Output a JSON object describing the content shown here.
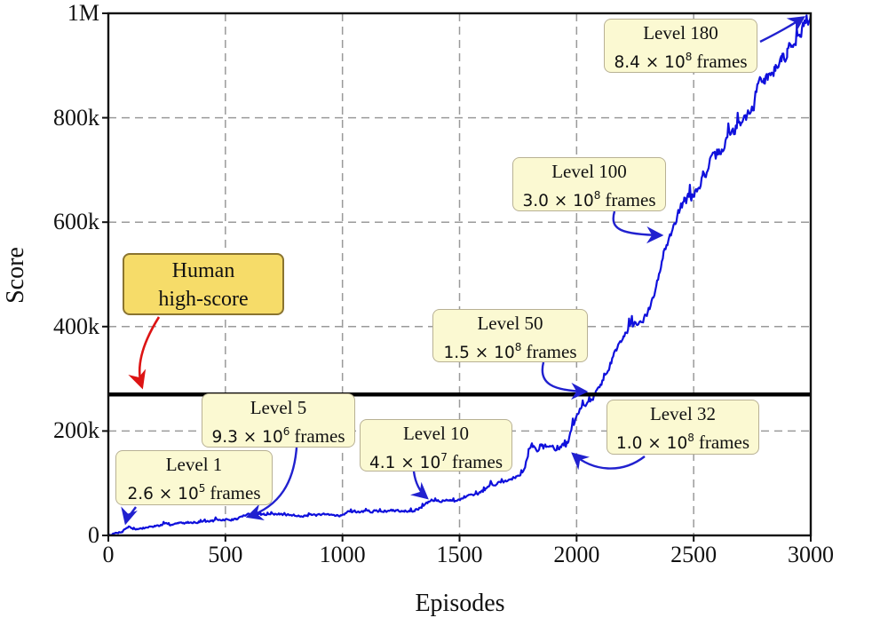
{
  "chart_data": {
    "type": "line",
    "xlabel": "Episodes",
    "ylabel": "Score",
    "xlim": [
      0,
      3000
    ],
    "ylim": [
      0,
      1000000
    ],
    "grid": "dashed-gray-on",
    "legend": "none",
    "xticks": [
      {
        "value": 0,
        "label": "0"
      },
      {
        "value": 500,
        "label": "500"
      },
      {
        "value": 1000,
        "label": "1000"
      },
      {
        "value": 1500,
        "label": "1500"
      },
      {
        "value": 2000,
        "label": "2000"
      },
      {
        "value": 2500,
        "label": "2500"
      },
      {
        "value": 3000,
        "label": "3000"
      }
    ],
    "yticks": [
      {
        "value": 0,
        "label": "0"
      },
      {
        "value": 200000,
        "label": "200k"
      },
      {
        "value": 400000,
        "label": "400k"
      },
      {
        "value": 600000,
        "label": "600k"
      },
      {
        "value": 800000,
        "label": "800k"
      },
      {
        "value": 1000000,
        "label": "1M"
      }
    ],
    "human_line": {
      "value": 270000,
      "color": "#000000"
    },
    "series": [
      {
        "name": "score-curve",
        "color": "#0f10dc",
        "points": [
          [
            0,
            1000
          ],
          [
            30,
            4000
          ],
          [
            60,
            8000
          ],
          [
            75,
            14000
          ],
          [
            90,
            17000
          ],
          [
            105,
            13000
          ],
          [
            125,
            12000
          ],
          [
            150,
            14000
          ],
          [
            200,
            18000
          ],
          [
            250,
            21000
          ],
          [
            300,
            23000
          ],
          [
            350,
            25000
          ],
          [
            400,
            27000
          ],
          [
            450,
            28000
          ],
          [
            500,
            30000
          ],
          [
            545,
            31000
          ],
          [
            565,
            35000
          ],
          [
            585,
            39000
          ],
          [
            620,
            40000
          ],
          [
            700,
            41000
          ],
          [
            800,
            38000
          ],
          [
            900,
            39000
          ],
          [
            1000,
            39000
          ],
          [
            1020,
            45000
          ],
          [
            1100,
            46000
          ],
          [
            1200,
            47000
          ],
          [
            1300,
            48000
          ],
          [
            1330,
            52000
          ],
          [
            1355,
            60000
          ],
          [
            1380,
            66000
          ],
          [
            1420,
            67000
          ],
          [
            1470,
            66000
          ],
          [
            1520,
            72000
          ],
          [
            1570,
            78000
          ],
          [
            1600,
            85000
          ],
          [
            1625,
            95000
          ],
          [
            1660,
            100000
          ],
          [
            1700,
            105000
          ],
          [
            1730,
            110000
          ],
          [
            1760,
            118000
          ],
          [
            1780,
            135000
          ],
          [
            1795,
            160000
          ],
          [
            1805,
            172000
          ],
          [
            1820,
            168000
          ],
          [
            1850,
            172000
          ],
          [
            1870,
            168000
          ],
          [
            1890,
            170000
          ],
          [
            1910,
            167000
          ],
          [
            1930,
            169000
          ],
          [
            1950,
            172000
          ],
          [
            1965,
            180000
          ],
          [
            1980,
            205000
          ],
          [
            1995,
            228000
          ],
          [
            2010,
            238000
          ],
          [
            2030,
            248000
          ],
          [
            2050,
            258000
          ],
          [
            2070,
            266000
          ],
          [
            2090,
            278000
          ],
          [
            2110,
            295000
          ],
          [
            2140,
            325000
          ],
          [
            2170,
            355000
          ],
          [
            2200,
            385000
          ],
          [
            2220,
            398000
          ],
          [
            2240,
            403000
          ],
          [
            2260,
            406000
          ],
          [
            2280,
            410000
          ],
          [
            2300,
            420000
          ],
          [
            2320,
            445000
          ],
          [
            2340,
            470000
          ],
          [
            2360,
            520000
          ],
          [
            2380,
            555000
          ],
          [
            2395,
            572000
          ],
          [
            2410,
            590000
          ],
          [
            2430,
            615000
          ],
          [
            2460,
            640000
          ],
          [
            2490,
            648000
          ],
          [
            2510,
            660000
          ],
          [
            2540,
            688000
          ],
          [
            2570,
            710000
          ],
          [
            2600,
            728000
          ],
          [
            2640,
            755000
          ],
          [
            2680,
            780000
          ],
          [
            2700,
            793000
          ],
          [
            2720,
            800000
          ],
          [
            2745,
            808000
          ],
          [
            2760,
            830000
          ],
          [
            2775,
            865000
          ],
          [
            2800,
            876000
          ],
          [
            2825,
            880000
          ],
          [
            2850,
            898000
          ],
          [
            2875,
            912000
          ],
          [
            2900,
            928000
          ],
          [
            2920,
            942000
          ],
          [
            2940,
            955000
          ],
          [
            2955,
            970000
          ],
          [
            2970,
            978000
          ],
          [
            2985,
            988000
          ],
          [
            3000,
            997000
          ]
        ]
      }
    ]
  },
  "annotations": {
    "arrow_color": "#2121cf",
    "box_fill": "#fbf9d2",
    "box_border": "#b8b194",
    "human": {
      "line1": "Human",
      "line2": "high-score",
      "fill": "#f6dc69",
      "border": "#8a7430",
      "arrow_color": "#dd1414",
      "target_score": 270000
    },
    "levels": [
      {
        "title": "Level 1",
        "value": "2.6 × 10",
        "exp": "5",
        "unit": "frames",
        "target_episode": 75,
        "target_score": 15000
      },
      {
        "title": "Level 5",
        "value": "9.3 × 10",
        "exp": "6",
        "unit": "frames",
        "target_episode": 570,
        "target_score": 35000
      },
      {
        "title": "Level 10",
        "value": "4.1 × 10",
        "exp": "7",
        "unit": "frames",
        "target_episode": 1370,
        "target_score": 68000
      },
      {
        "title": "Level 32",
        "value": "1.0 × 10",
        "exp": "8",
        "unit": "frames",
        "target_episode": 1960,
        "target_score": 162000
      },
      {
        "title": "Level 50",
        "value": "1.5 × 10",
        "exp": "8",
        "unit": "frames",
        "target_episode": 2065,
        "target_score": 277000
      },
      {
        "title": "Level 100",
        "value": "3.0 × 10",
        "exp": "8",
        "unit": "frames",
        "target_episode": 2385,
        "target_score": 575000
      },
      {
        "title": "Level 180",
        "value": "8.4 × 10",
        "exp": "8",
        "unit": "frames",
        "target_episode": 2990,
        "target_score": 991000
      }
    ]
  }
}
